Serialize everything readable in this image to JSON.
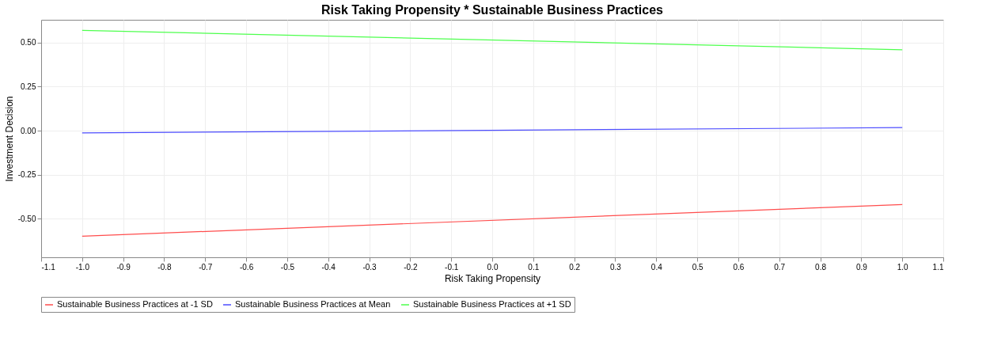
{
  "chart_data": {
    "type": "line",
    "title": "Risk Taking Propensity * Sustainable Business Practices",
    "xlabel": "Risk Taking Propensity",
    "ylabel": "Investment Decision",
    "x": [
      -1.0,
      1.0
    ],
    "series": [
      {
        "name": "Sustainable Business Practices at -1 SD",
        "color": "#ff4d4d",
        "values": [
          -0.6,
          -0.42
        ]
      },
      {
        "name": "Sustainable Business Practices at Mean",
        "color": "#4d4dff",
        "values": [
          -0.013,
          0.017
        ]
      },
      {
        "name": "Sustainable Business Practices at +1 SD",
        "color": "#4dff4d",
        "values": [
          0.57,
          0.46
        ]
      }
    ],
    "xlim": [
      -1.1,
      1.1
    ],
    "xticks": [
      {
        "value": -1.1,
        "label": "-1.1"
      },
      {
        "value": -1.0,
        "label": "-1.0"
      },
      -0.9,
      -0.8,
      -0.7,
      -0.6,
      -0.5,
      -0.4,
      -0.3,
      -0.2,
      -0.1,
      {
        "value": 0,
        "label": "0.0"
      },
      0.1,
      0.2,
      0.3,
      0.4,
      0.5,
      0.6,
      0.7,
      0.8,
      0.9,
      {
        "value": 1.0,
        "label": "1.0"
      },
      {
        "value": 1.1,
        "label": "1.1"
      }
    ],
    "ylim": [
      -0.72,
      0.63
    ],
    "yticks": [
      {
        "value": -0.5,
        "label": "-0.50"
      },
      {
        "value": -0.25,
        "label": "-0.25"
      },
      {
        "value": 0,
        "label": "0.00"
      },
      {
        "value": 0.25,
        "label": "0.25"
      },
      {
        "value": 0.5,
        "label": "0.50"
      }
    ],
    "grid": true,
    "legend": "bottom",
    "marker": "none",
    "line_style": "solid"
  }
}
